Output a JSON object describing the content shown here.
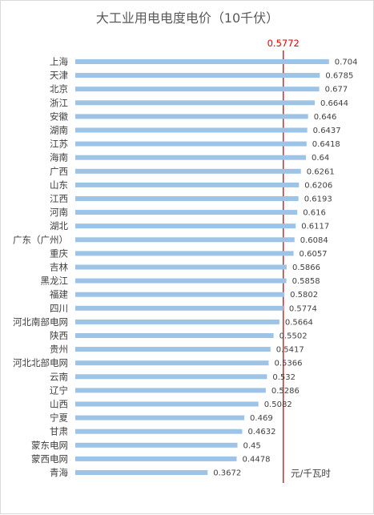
{
  "chart_data": {
    "type": "bar",
    "orientation": "horizontal",
    "title": "大工业用电电度电价（10千伏）",
    "unit_label": "元/千瓦时",
    "categories": [
      "上海",
      "天津",
      "北京",
      "浙江",
      "安徽",
      "湖南",
      "江苏",
      "海南",
      "广西",
      "山东",
      "江西",
      "河南",
      "湖北",
      "广东（广州）",
      "重庆",
      "吉林",
      "黑龙江",
      "福建",
      "四川",
      "河北南部电网",
      "陕西",
      "贵州",
      "河北北部电网",
      "云南",
      "辽宁",
      "山西",
      "宁夏",
      "甘肃",
      "蒙东电网",
      "蒙西电网",
      "青海"
    ],
    "values": [
      0.704,
      0.6785,
      0.677,
      0.6644,
      0.646,
      0.6437,
      0.6418,
      0.64,
      0.6261,
      0.6206,
      0.6193,
      0.616,
      0.6117,
      0.6084,
      0.6057,
      0.5866,
      0.5858,
      0.5802,
      0.5774,
      0.5664,
      0.5502,
      0.5417,
      0.5366,
      0.532,
      0.5286,
      0.5082,
      0.469,
      0.4632,
      0.45,
      0.4478,
      0.3672
    ],
    "value_labels": [
      "0.704",
      "0.6785",
      "0.677",
      "0.6644",
      "0.646",
      "0.6437",
      "0.6418",
      "0.64",
      "0.6261",
      "0.6206",
      "0.6193",
      "0.616",
      "0.6117",
      "0.6084",
      "0.6057",
      "0.5866",
      "0.5858",
      "0.5802",
      "0.5774",
      "0.5664",
      "0.5502",
      "0.5417",
      "0.5366",
      "0.532",
      "0.5286",
      "0.5082",
      "0.469",
      "0.4632",
      "0.45",
      "0.4478",
      "0.3672"
    ],
    "xlim": [
      0,
      0.8
    ],
    "reference_line": {
      "value": 0.5772,
      "label": "0.5772",
      "color": "#e00000"
    },
    "bar_color": "#9dc3e6",
    "grid": false,
    "legend": "none"
  }
}
